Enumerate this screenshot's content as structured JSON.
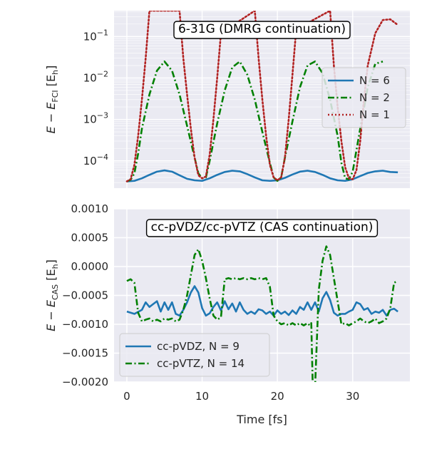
{
  "chart_data": [
    {
      "type": "line",
      "title": "6-31G (DMRG continuation)",
      "ylabel_parts": [
        "E − E",
        "FCI",
        " [E",
        "h",
        "]"
      ],
      "yscale": "log",
      "ylim": [
        2.2e-05,
        0.42
      ],
      "xlim": [
        -1.7,
        37.6
      ],
      "yticks": [
        0.0001,
        0.001,
        0.01,
        0.1
      ],
      "ytick_labels": [
        {
          "base": "10",
          "exp": "−4"
        },
        {
          "base": "10",
          "exp": "−3"
        },
        {
          "base": "10",
          "exp": "−2"
        },
        {
          "base": "10",
          "exp": "−1"
        }
      ],
      "xticks": [
        0,
        10,
        20,
        30
      ],
      "legend_position": "right",
      "grid": true,
      "series": [
        {
          "name": "N = 6",
          "color": "#1f77b4",
          "style": "solid",
          "x": [
            0,
            1,
            2,
            3,
            4,
            5,
            6,
            7,
            8,
            9,
            10,
            11,
            12,
            13,
            14,
            15,
            16,
            17,
            18,
            19,
            20,
            21,
            22,
            23,
            24,
            25,
            26,
            27,
            28,
            29,
            30,
            31,
            32,
            33,
            34,
            35,
            36
          ],
          "y": [
            3.2e-05,
            3.3e-05,
            3.8e-05,
            4.6e-05,
            5.5e-05,
            5.9e-05,
            5.5e-05,
            4.5e-05,
            3.7e-05,
            3.4e-05,
            3.3e-05,
            3.8e-05,
            4.6e-05,
            5.4e-05,
            5.8e-05,
            5.6e-05,
            4.8e-05,
            4e-05,
            3.4e-05,
            3.3e-05,
            3.4e-05,
            3.9e-05,
            4.7e-05,
            5.5e-05,
            5.8e-05,
            5.4e-05,
            4.6e-05,
            3.8e-05,
            3.4e-05,
            3.3e-05,
            3.6e-05,
            4.3e-05,
            5.1e-05,
            5.6e-05,
            5.8e-05,
            5.4e-05,
            5.3e-05
          ]
        },
        {
          "name": "N = 2",
          "color": "#008000",
          "style": "dashdot",
          "x": [
            0,
            0.5,
            1,
            1.5,
            2,
            3,
            4,
            5,
            6,
            7,
            8,
            9,
            9.5,
            10,
            10.5,
            11,
            12,
            13,
            14,
            15,
            16,
            17,
            18,
            19,
            19.5,
            20,
            20.5,
            21,
            22,
            23,
            24,
            25,
            26,
            27,
            28,
            28.5,
            29,
            29.5,
            30,
            31,
            32,
            33,
            34
          ],
          "y": [
            3.2e-05,
            3.5e-05,
            5e-05,
            0.00015,
            0.0006,
            0.004,
            0.015,
            0.025,
            0.015,
            0.004,
            0.0007,
            0.00012,
            5e-05,
            3.8e-05,
            4e-05,
            0.0001,
            0.0008,
            0.005,
            0.018,
            0.025,
            0.012,
            0.003,
            0.0005,
            9e-05,
            4e-05,
            3.3e-05,
            4e-05,
            0.00012,
            0.0009,
            0.006,
            0.02,
            0.025,
            0.013,
            0.003,
            0.0004,
            9e-05,
            3.8e-05,
            3.6e-05,
            5.5e-05,
            0.0006,
            0.006,
            0.022,
            0.025
          ]
        },
        {
          "name": "N = 1",
          "color": "#b22222",
          "style": "dotted",
          "x": [
            0,
            0.5,
            1,
            1.5,
            2,
            2.5,
            3,
            7,
            7.5,
            8,
            8.5,
            9,
            9.5,
            10,
            10.5,
            11,
            11.5,
            12,
            12.5,
            17,
            17.5,
            18,
            18.5,
            19,
            19.5,
            20,
            20.5,
            21,
            21.5,
            22,
            22.5,
            27,
            27.5,
            28,
            28.5,
            29,
            29.5,
            30,
            30.5,
            31,
            31.5,
            32,
            33,
            34,
            35,
            36
          ],
          "y": [
            3.2e-05,
            3.6e-05,
            8e-05,
            0.0004,
            0.003,
            0.03,
            0.42,
            0.42,
            0.03,
            0.004,
            0.0006,
            0.00012,
            4.5e-05,
            3.8e-05,
            4.2e-05,
            0.00014,
            0.001,
            0.01,
            0.12,
            0.42,
            0.03,
            0.003,
            0.0004,
            8e-05,
            4e-05,
            3.4e-05,
            4e-05,
            0.00012,
            0.001,
            0.012,
            0.15,
            0.42,
            0.02,
            0.002,
            0.0003,
            7e-05,
            3.8e-05,
            3.6e-05,
            6e-05,
            0.0003,
            0.003,
            0.02,
            0.12,
            0.25,
            0.26,
            0.19
          ]
        }
      ]
    },
    {
      "type": "line",
      "title": "cc-pVDZ/cc-pVTZ (CAS continuation)",
      "ylabel_parts": [
        "E − E",
        "CAS",
        " [E",
        "h",
        "]"
      ],
      "yscale": "linear",
      "ylim": [
        -0.002,
        0.001
      ],
      "xlim": [
        -1.7,
        37.6
      ],
      "yticks": [
        -0.002,
        -0.0015,
        -0.001,
        -0.0005,
        0.0,
        0.0005,
        0.001
      ],
      "ytick_labels": [
        "−0.0020",
        "−0.0015",
        "−0.0010",
        "−0.0005",
        "0.0000",
        "0.0005",
        "0.0010"
      ],
      "xticks": [
        0,
        10,
        20,
        30
      ],
      "xtick_labels": [
        "0",
        "10",
        "20",
        "30"
      ],
      "xlabel": "Time [fs]",
      "legend_position": "lower left",
      "grid": true,
      "series": [
        {
          "name": "cc-pVDZ, N = 9",
          "color": "#1f77b4",
          "style": "solid",
          "x": [
            0,
            1,
            2,
            2.5,
            3,
            3.5,
            4,
            4.5,
            5,
            5.5,
            6,
            6.5,
            7,
            7.5,
            8,
            8.5,
            9,
            9.5,
            10,
            10.5,
            11,
            11.5,
            12,
            12.5,
            13,
            13.5,
            14,
            14.5,
            15,
            15.5,
            16,
            16.5,
            17,
            17.5,
            18,
            18.5,
            19,
            19.5,
            20,
            20.5,
            21,
            21.5,
            22,
            22.5,
            23,
            23.5,
            24,
            24.5,
            25,
            25.5,
            26,
            26.5,
            27,
            27.5,
            28,
            28.5,
            29,
            29.5,
            30,
            30.5,
            31,
            31.5,
            32,
            32.5,
            33,
            33.5,
            34,
            34.5,
            35,
            35.5,
            36
          ],
          "y": [
            -0.00078,
            -0.00082,
            -0.00075,
            -0.00062,
            -0.0007,
            -0.00065,
            -0.0006,
            -0.00078,
            -0.00062,
            -0.00075,
            -0.00062,
            -0.00082,
            -0.00085,
            -0.00075,
            -0.00062,
            -0.00045,
            -0.00034,
            -0.00045,
            -0.00072,
            -0.00085,
            -0.00081,
            -0.0007,
            -0.00062,
            -0.00076,
            -0.0006,
            -0.00074,
            -0.00064,
            -0.00078,
            -0.00062,
            -0.00075,
            -0.00082,
            -0.00078,
            -0.00082,
            -0.00074,
            -0.00076,
            -0.00082,
            -0.00078,
            -0.00085,
            -0.00076,
            -0.00082,
            -0.00078,
            -0.00084,
            -0.00076,
            -0.00082,
            -0.0007,
            -0.00075,
            -0.00062,
            -0.00075,
            -0.00062,
            -0.00078,
            -0.00055,
            -0.00044,
            -0.00058,
            -0.0008,
            -0.00085,
            -0.00082,
            -0.00082,
            -0.00078,
            -0.00075,
            -0.00062,
            -0.00065,
            -0.00075,
            -0.00072,
            -0.00082,
            -0.00078,
            -0.0008,
            -0.00075,
            -0.00085,
            -0.00075,
            -0.00073,
            -0.00078
          ]
        },
        {
          "name": "cc-pVTZ, N = 14",
          "color": "#008000",
          "style": "dashdot",
          "x": [
            0,
            0.5,
            1,
            1.5,
            2,
            2.5,
            3,
            3.5,
            4,
            4.5,
            5,
            5.5,
            6,
            6.5,
            7,
            7.5,
            8,
            8.5,
            9,
            9.5,
            10,
            10.5,
            11,
            11.5,
            12,
            12.5,
            13,
            13.5,
            14,
            14.5,
            15,
            15.5,
            16,
            16.5,
            17,
            17.5,
            18,
            18.5,
            19,
            19.5,
            20,
            20.5,
            21,
            21.5,
            22,
            22.5,
            23,
            23.5,
            24,
            24.3,
            24.5,
            24.7,
            25,
            25.5,
            26,
            26.5,
            27,
            27.5,
            28,
            28.5,
            29,
            29.5,
            30,
            30.5,
            31,
            31.5,
            32,
            32.5,
            33,
            33.5,
            34,
            34.5,
            35,
            35.5,
            36
          ],
          "y": [
            -0.00025,
            -0.00022,
            -0.00028,
            -0.0008,
            -0.00095,
            -0.00092,
            -0.0009,
            -0.00095,
            -0.00092,
            -0.00095,
            -0.0009,
            -0.00092,
            -0.0009,
            -0.00095,
            -0.00092,
            -0.00075,
            -0.0005,
            -0.00015,
            0.0002,
            0.0003,
            0.0001,
            -0.0002,
            -0.00055,
            -0.00085,
            -0.00092,
            -0.00088,
            -0.00022,
            -0.0002,
            -0.00022,
            -0.0002,
            -0.00022,
            -0.0002,
            -0.00022,
            -0.0002,
            -0.00022,
            -0.0002,
            -0.00022,
            -0.0002,
            -0.00035,
            -0.00085,
            -0.00095,
            -0.001,
            -0.00098,
            -0.00102,
            -0.00098,
            -0.00102,
            -0.00098,
            -0.00102,
            -0.00098,
            -0.00102,
            -0.00098,
            -0.0021,
            -0.0021,
            -0.0004,
            0.0001,
            0.00035,
            0.0002,
            -0.0002,
            -0.0006,
            -0.001,
            -0.00098,
            -0.00102,
            -0.00098,
            -0.00095,
            -0.0009,
            -0.00095,
            -0.00098,
            -0.00095,
            -0.0009,
            -0.00098,
            -0.00095,
            -0.0009,
            -0.00072,
            -0.00028,
            -0.00025
          ]
        }
      ]
    }
  ]
}
